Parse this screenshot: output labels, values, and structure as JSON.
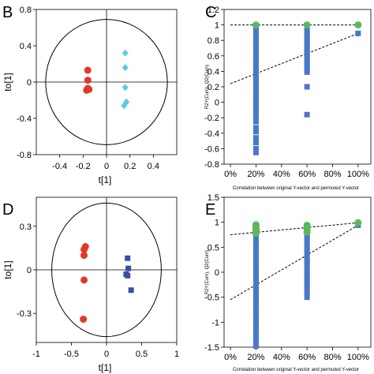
{
  "chart_data": [
    {
      "type": "scatter",
      "panel_label": "B",
      "xlabel": "t[1]",
      "ylabel": "to[1]",
      "xlim": [
        -0.6,
        0.6
      ],
      "ylim": [
        -0.8,
        0.8
      ],
      "x_ticks": [
        "-0.4",
        "-0.2",
        "0",
        "0.2",
        "0.4"
      ],
      "x_tick_values": [
        -0.4,
        -0.2,
        0,
        0.2,
        0.4
      ],
      "y_ticks": [
        "0.8",
        "0.4",
        "0",
        "-0.4",
        "-0.8"
      ],
      "y_tick_values": [
        0.8,
        0.4,
        0,
        -0.4,
        -0.8
      ],
      "ellipse": {
        "cx": 0,
        "cy": 0,
        "rx": 0.52,
        "ry": 0.69
      },
      "series": [
        {
          "marker": "circle",
          "color": "#e0392b",
          "points": [
            [
              -0.16,
              0.13
            ],
            [
              -0.16,
              0.02
            ],
            [
              -0.16,
              -0.07
            ],
            [
              -0.17,
              -0.09
            ],
            [
              -0.15,
              -0.08
            ]
          ]
        },
        {
          "marker": "diamond",
          "color": "#5bc8ee",
          "points": [
            [
              0.16,
              0.32
            ],
            [
              0.16,
              0.16
            ],
            [
              0.16,
              -0.06
            ],
            [
              0.17,
              -0.22
            ],
            [
              0.15,
              -0.26
            ]
          ]
        }
      ]
    },
    {
      "type": "scatter",
      "panel_label": "C",
      "xlabel": "Correlation between original Y-vector and permuted Y-vector",
      "ylabel": "R2Y(Cum), Q2(Cum)",
      "xlim": [
        -0.05,
        1.1
      ],
      "ylim": [
        -0.8,
        1.2
      ],
      "x_ticks": [
        "0%",
        "20%",
        "40%",
        "60%",
        "80%",
        "100%"
      ],
      "x_tick_values": [
        0,
        0.2,
        0.4,
        0.6,
        0.8,
        1.0
      ],
      "y_ticks": [
        "1.2",
        "1",
        "0.8",
        "0.6",
        "0.4",
        "0.2",
        "0",
        "-0.2",
        "-0.4",
        "-0.6",
        "-0.8"
      ],
      "y_tick_values": [
        1.2,
        1.0,
        0.8,
        0.6,
        0.4,
        0.2,
        0,
        -0.2,
        -0.4,
        -0.6,
        -0.8
      ],
      "series": [
        {
          "marker": "circle",
          "color": "#5cb85c",
          "points": [
            [
              0.2,
              1.0
            ],
            [
              0.6,
              1.0
            ],
            [
              1.0,
              1.0
            ]
          ]
        },
        {
          "marker": "square",
          "color": "#4a78c8",
          "points": [
            [
              0.2,
              0.98
            ],
            [
              0.2,
              0.95
            ],
            [
              0.2,
              0.92
            ],
            [
              0.2,
              0.89
            ],
            [
              0.2,
              0.86
            ],
            [
              0.2,
              0.83
            ],
            [
              0.2,
              0.8
            ],
            [
              0.2,
              0.77
            ],
            [
              0.2,
              0.74
            ],
            [
              0.2,
              0.71
            ],
            [
              0.2,
              0.68
            ],
            [
              0.2,
              0.65
            ],
            [
              0.2,
              0.62
            ],
            [
              0.2,
              0.59
            ],
            [
              0.2,
              0.56
            ],
            [
              0.2,
              0.53
            ],
            [
              0.2,
              0.5
            ],
            [
              0.2,
              0.47
            ],
            [
              0.2,
              0.44
            ],
            [
              0.2,
              0.41
            ],
            [
              0.2,
              0.38
            ],
            [
              0.2,
              0.35
            ],
            [
              0.2,
              0.32
            ],
            [
              0.2,
              0.29
            ],
            [
              0.2,
              0.26
            ],
            [
              0.2,
              0.23
            ],
            [
              0.2,
              0.2
            ],
            [
              0.2,
              0.17
            ],
            [
              0.2,
              0.14
            ],
            [
              0.2,
              0.11
            ],
            [
              0.2,
              0.08
            ],
            [
              0.2,
              0.05
            ],
            [
              0.2,
              0.02
            ],
            [
              0.2,
              -0.01
            ],
            [
              0.2,
              -0.04
            ],
            [
              0.2,
              -0.07
            ],
            [
              0.2,
              -0.1
            ],
            [
              0.2,
              -0.13
            ],
            [
              0.2,
              -0.16
            ],
            [
              0.2,
              -0.19
            ],
            [
              0.2,
              -0.25
            ],
            [
              0.2,
              -0.33
            ],
            [
              0.2,
              -0.38
            ],
            [
              0.2,
              -0.46
            ],
            [
              0.2,
              -0.52
            ],
            [
              0.2,
              -0.6
            ],
            [
              0.2,
              -0.65
            ],
            [
              0.6,
              0.93
            ],
            [
              0.6,
              0.9
            ],
            [
              0.6,
              0.87
            ],
            [
              0.6,
              0.84
            ],
            [
              0.6,
              0.81
            ],
            [
              0.6,
              0.78
            ],
            [
              0.6,
              0.75
            ],
            [
              0.6,
              0.72
            ],
            [
              0.6,
              0.69
            ],
            [
              0.6,
              0.66
            ],
            [
              0.6,
              0.63
            ],
            [
              0.6,
              0.6
            ],
            [
              0.6,
              0.57
            ],
            [
              0.6,
              0.54
            ],
            [
              0.6,
              0.51
            ],
            [
              0.6,
              0.48
            ],
            [
              0.6,
              0.45
            ],
            [
              0.6,
              0.42
            ],
            [
              0.6,
              0.39
            ],
            [
              0.6,
              0.2
            ],
            [
              0.6,
              -0.16
            ],
            [
              1.0,
              0.89
            ]
          ]
        }
      ],
      "regression_lines": [
        {
          "from": [
            0,
            1.0
          ],
          "to": [
            1.0,
            1.0
          ]
        },
        {
          "from": [
            0,
            0.24
          ],
          "to": [
            1.0,
            0.89
          ]
        }
      ]
    },
    {
      "type": "scatter",
      "panel_label": "D",
      "xlabel": "t[1]",
      "ylabel": "to[1]",
      "xlim": [
        -1,
        1
      ],
      "ylim": [
        -0.5,
        0.5
      ],
      "x_ticks": [
        "-1",
        "-0.5",
        "0",
        "0.5",
        "1"
      ],
      "x_tick_values": [
        -1,
        -0.5,
        0,
        0.5,
        1
      ],
      "y_ticks": [
        "0.3",
        "0",
        "-0.3"
      ],
      "y_tick_values": [
        0.3,
        0,
        -0.3
      ],
      "ellipse": {
        "cx": 0,
        "cy": 0,
        "rx": 0.78,
        "ry": 0.46
      },
      "series": [
        {
          "marker": "circle",
          "color": "#e0392b",
          "points": [
            [
              -0.3,
              0.16
            ],
            [
              -0.32,
              0.14
            ],
            [
              -0.32,
              0.1
            ],
            [
              -0.32,
              -0.07
            ],
            [
              -0.33,
              -0.34
            ]
          ]
        },
        {
          "marker": "square",
          "color": "#3d4da0",
          "points": [
            [
              0.3,
              0.08
            ],
            [
              0.31,
              0.01
            ],
            [
              0.28,
              -0.03
            ],
            [
              0.3,
              -0.04
            ],
            [
              0.35,
              -0.14
            ]
          ]
        }
      ]
    },
    {
      "type": "scatter",
      "panel_label": "E",
      "xlabel": "Correlation between original Y-vector and permuted Y-vector",
      "ylabel": "R2Y(Cum), Q2(Cum)",
      "xlim": [
        -0.05,
        1.1
      ],
      "ylim": [
        -1.5,
        1.5
      ],
      "x_ticks": [
        "0%",
        "20%",
        "40%",
        "60%",
        "80%",
        "100%"
      ],
      "x_tick_values": [
        0,
        0.2,
        0.4,
        0.6,
        0.8,
        1.0
      ],
      "y_ticks": [
        "1.5",
        "1",
        "0.5",
        "0",
        "-0.5",
        "-1",
        "-1.5"
      ],
      "y_tick_values": [
        1.5,
        1.0,
        0.5,
        0,
        -0.5,
        -1.0,
        -1.5
      ],
      "series": [
        {
          "marker": "circle",
          "color": "#5cb85c",
          "points": [
            [
              0.2,
              0.95
            ],
            [
              0.2,
              0.9
            ],
            [
              0.2,
              0.86
            ],
            [
              0.2,
              0.82
            ],
            [
              0.2,
              0.78
            ],
            [
              0.6,
              0.94
            ],
            [
              0.6,
              0.9
            ],
            [
              0.6,
              0.85
            ],
            [
              0.6,
              0.8
            ],
            [
              1.0,
              0.99
            ]
          ]
        },
        {
          "marker": "square",
          "color": "#4a78c8",
          "points": [
            [
              0.2,
              0.74
            ],
            [
              0.2,
              0.68
            ],
            [
              0.2,
              0.62
            ],
            [
              0.2,
              0.56
            ],
            [
              0.2,
              0.5
            ],
            [
              0.2,
              0.44
            ],
            [
              0.2,
              0.38
            ],
            [
              0.2,
              0.32
            ],
            [
              0.2,
              0.26
            ],
            [
              0.2,
              0.2
            ],
            [
              0.2,
              0.14
            ],
            [
              0.2,
              0.08
            ],
            [
              0.2,
              0.02
            ],
            [
              0.2,
              -0.04
            ],
            [
              0.2,
              -0.1
            ],
            [
              0.2,
              -0.16
            ],
            [
              0.2,
              -0.22
            ],
            [
              0.2,
              -0.28
            ],
            [
              0.2,
              -0.34
            ],
            [
              0.2,
              -0.4
            ],
            [
              0.2,
              -0.46
            ],
            [
              0.2,
              -0.52
            ],
            [
              0.2,
              -0.58
            ],
            [
              0.2,
              -0.64
            ],
            [
              0.2,
              -0.7
            ],
            [
              0.2,
              -0.76
            ],
            [
              0.2,
              -0.82
            ],
            [
              0.2,
              -0.88
            ],
            [
              0.2,
              -0.94
            ],
            [
              0.2,
              -1.0
            ],
            [
              0.2,
              -1.06
            ],
            [
              0.2,
              -1.12
            ],
            [
              0.2,
              -1.18
            ],
            [
              0.2,
              -1.24
            ],
            [
              0.2,
              -1.3
            ],
            [
              0.2,
              -1.36
            ],
            [
              0.2,
              -1.42
            ],
            [
              0.2,
              -1.48
            ],
            [
              0.6,
              0.74
            ],
            [
              0.6,
              0.68
            ],
            [
              0.6,
              0.62
            ],
            [
              0.6,
              0.56
            ],
            [
              0.6,
              0.5
            ],
            [
              0.6,
              0.44
            ],
            [
              0.6,
              0.38
            ],
            [
              0.6,
              0.32
            ],
            [
              0.6,
              0.26
            ],
            [
              0.6,
              0.2
            ],
            [
              0.6,
              0.14
            ],
            [
              0.6,
              0.08
            ],
            [
              0.6,
              0.02
            ],
            [
              0.6,
              -0.04
            ],
            [
              0.6,
              -0.1
            ],
            [
              0.6,
              -0.16
            ],
            [
              0.6,
              -0.22
            ],
            [
              0.6,
              -0.28
            ],
            [
              0.6,
              -0.34
            ],
            [
              0.6,
              -0.4
            ],
            [
              0.6,
              -0.5
            ],
            [
              1.0,
              0.94
            ]
          ]
        }
      ],
      "regression_lines": [
        {
          "from": [
            0,
            0.75
          ],
          "to": [
            1.0,
            0.99
          ]
        },
        {
          "from": [
            0,
            -0.55
          ],
          "to": [
            1.0,
            0.94
          ]
        }
      ]
    }
  ]
}
